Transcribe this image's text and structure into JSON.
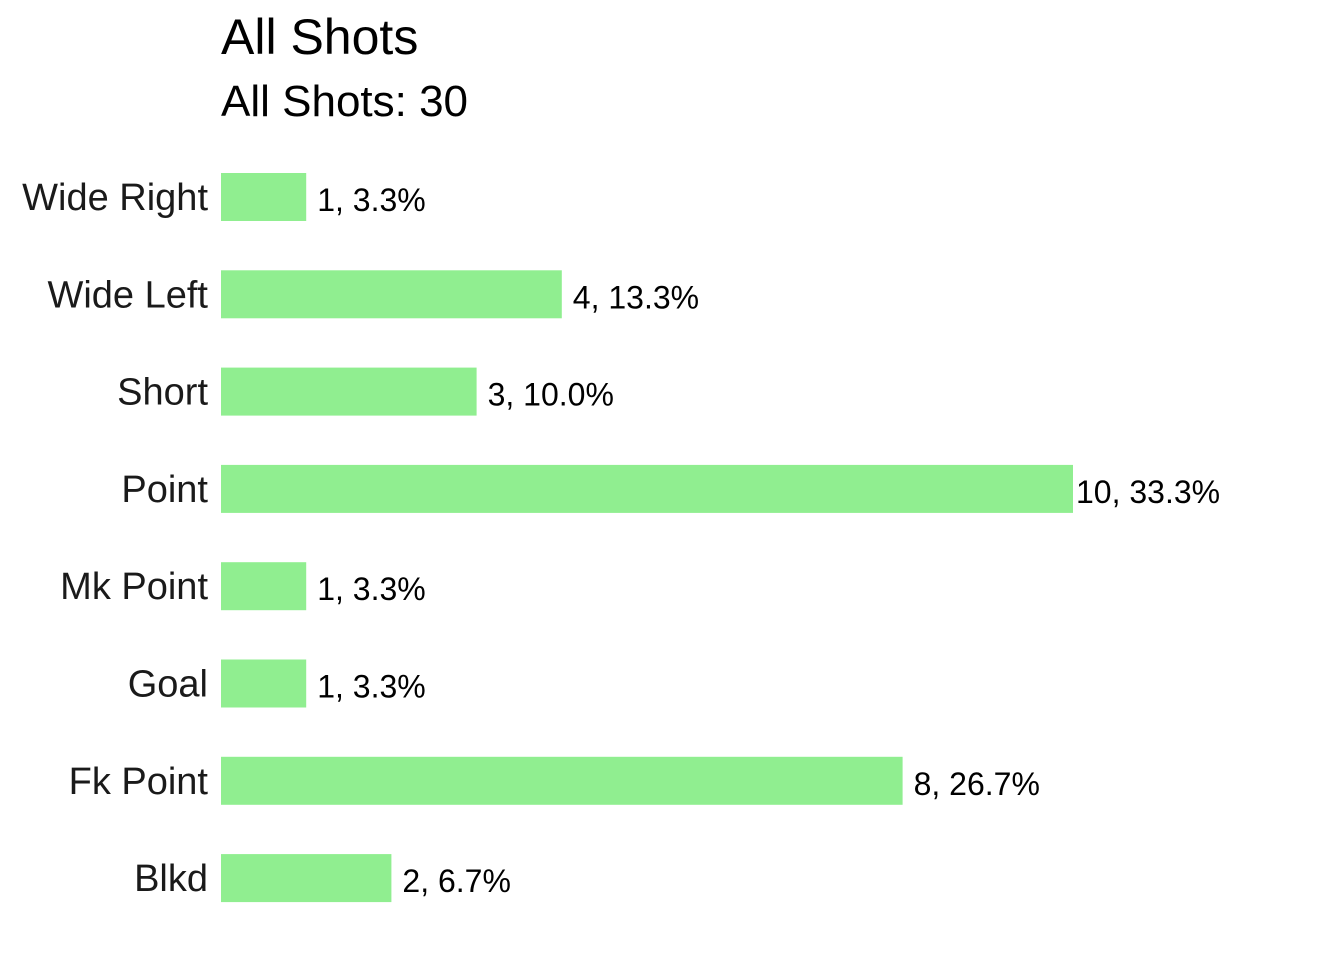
{
  "chart_data": {
    "type": "bar",
    "orientation": "horizontal",
    "title": "All Shots",
    "subtitle": "All Shots: 30",
    "categories": [
      "Wide Right",
      "Wide Left",
      "Short",
      "Point",
      "Mk Point",
      "Goal",
      "Fk Point",
      "Blkd"
    ],
    "values": [
      1,
      4,
      3,
      10,
      1,
      1,
      8,
      2
    ],
    "data_labels": [
      "1, 3.3%",
      "4, 13.3%",
      "3, 10.0%",
      "10, 33.3%",
      "1, 3.3%",
      "1, 3.3%",
      "8, 26.7%",
      "2, 6.7%"
    ],
    "bar_color": "#90ee90",
    "xlim": [
      0,
      10
    ],
    "grid": false,
    "axes_visible": false
  }
}
